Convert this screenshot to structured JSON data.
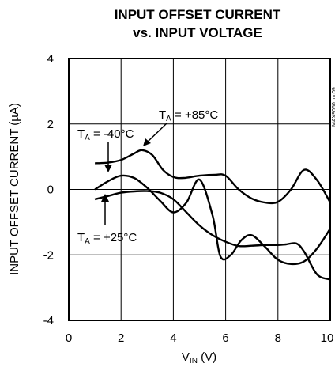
{
  "chart_data": {
    "type": "line",
    "title_line1": "INPUT OFFSET CURRENT",
    "title_line2": "vs. INPUT VOLTAGE",
    "xlabel": "V",
    "xlabel_sub": "IN",
    "xlabel_unit": " (V)",
    "ylabel": "INPUT OFFSET CURRENT (µA)",
    "xlim": [
      0,
      10
    ],
    "ylim": [
      -4,
      4
    ],
    "x_ticks": [
      "0",
      "2",
      "4",
      "6",
      "8",
      "10"
    ],
    "y_ticks": [
      "4",
      "2",
      "0",
      "-2",
      "-4"
    ],
    "grid": true,
    "side_id": "MAX9060 toc09",
    "annotations": [
      {
        "prefix": "T",
        "sub": "A",
        "text": " = +85°C"
      },
      {
        "prefix": "T",
        "sub": "A",
        "text": " = -40°C"
      },
      {
        "prefix": "T",
        "sub": "A",
        "text": " = +25°C"
      }
    ],
    "series": [
      {
        "x": [
          1.0,
          1.5,
          2.0,
          2.5,
          2.8,
          3.2,
          3.6,
          4.0,
          4.4,
          5.0,
          5.6,
          6.0,
          6.5,
          7.0,
          7.5,
          8.0,
          8.5,
          9.0,
          9.5,
          10.0
        ],
        "y": [
          0.8,
          0.82,
          0.9,
          1.1,
          1.2,
          1.05,
          0.6,
          0.38,
          0.35,
          0.42,
          0.45,
          0.42,
          0.0,
          -0.28,
          -0.4,
          -0.38,
          0.0,
          0.6,
          0.28,
          -0.4
        ]
      },
      {
        "x": [
          1.0,
          1.5,
          2.0,
          2.5,
          3.0,
          3.5,
          4.0,
          4.5,
          5.0,
          5.5,
          5.8,
          6.2,
          6.6,
          7.0,
          7.5,
          8.0,
          8.5,
          9.0,
          9.5,
          10.0
        ],
        "y": [
          0.0,
          0.25,
          0.42,
          0.35,
          0.05,
          -0.35,
          -0.7,
          -0.4,
          0.3,
          -0.8,
          -2.05,
          -2.0,
          -1.55,
          -1.4,
          -1.75,
          -2.15,
          -2.28,
          -2.2,
          -1.8,
          -1.2
        ]
      },
      {
        "x": [
          1.0,
          1.5,
          2.0,
          2.5,
          3.0,
          3.5,
          4.0,
          4.5,
          5.0,
          5.5,
          6.0,
          6.5,
          7.0,
          7.5,
          8.0,
          8.3,
          8.7,
          9.0,
          9.5,
          10.0
        ],
        "y": [
          -0.3,
          -0.2,
          -0.1,
          -0.06,
          -0.05,
          -0.1,
          -0.3,
          -0.7,
          -1.1,
          -1.4,
          -1.6,
          -1.73,
          -1.72,
          -1.7,
          -1.7,
          -1.68,
          -1.65,
          -1.9,
          -2.6,
          -2.75
        ]
      }
    ]
  }
}
